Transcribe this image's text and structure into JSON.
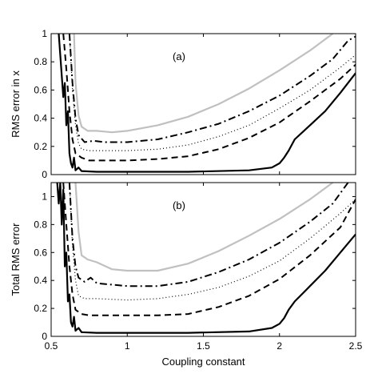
{
  "chart_data": [
    {
      "type": "line",
      "panel_label": "(a)",
      "xlabel": "",
      "ylabel": "RMS error in x",
      "xlim": [
        0.5,
        2.5
      ],
      "ylim": [
        0,
        1
      ],
      "x_ticks": [
        0.5,
        1,
        1.5,
        2,
        2.5
      ],
      "x_tick_labels": [
        "",
        "",
        "",
        "",
        ""
      ],
      "y_ticks": [
        0,
        0.2,
        0.4,
        0.6,
        0.8,
        1
      ],
      "y_tick_labels": [
        "0",
        "0.2",
        "0.4",
        "0.6",
        "0.8",
        "1"
      ],
      "grid": false,
      "series": [
        {
          "style": "solid",
          "color": "#000000",
          "points": [
            [
              0.55,
              1.0
            ],
            [
              0.57,
              0.7
            ],
            [
              0.58,
              0.55
            ],
            [
              0.59,
              0.65
            ],
            [
              0.6,
              0.35
            ],
            [
              0.61,
              0.45
            ],
            [
              0.62,
              0.15
            ],
            [
              0.63,
              0.08
            ],
            [
              0.64,
              0.05
            ],
            [
              0.65,
              0.12
            ],
            [
              0.66,
              0.03
            ],
            [
              0.68,
              0.05
            ],
            [
              0.7,
              0.025
            ],
            [
              0.8,
              0.02
            ],
            [
              1.0,
              0.02
            ],
            [
              1.4,
              0.02
            ],
            [
              1.8,
              0.03
            ],
            [
              1.95,
              0.05
            ],
            [
              2.0,
              0.08
            ],
            [
              2.03,
              0.12
            ],
            [
              2.06,
              0.17
            ],
            [
              2.1,
              0.25
            ],
            [
              2.2,
              0.35
            ],
            [
              2.3,
              0.45
            ],
            [
              2.4,
              0.58
            ],
            [
              2.5,
              0.72
            ]
          ]
        },
        {
          "style": "dashed",
          "color": "#000000",
          "points": [
            [
              0.58,
              1.0
            ],
            [
              0.6,
              0.75
            ],
            [
              0.62,
              0.45
            ],
            [
              0.64,
              0.25
            ],
            [
              0.66,
              0.15
            ],
            [
              0.7,
              0.12
            ],
            [
              0.75,
              0.1
            ],
            [
              1.0,
              0.1
            ],
            [
              1.2,
              0.11
            ],
            [
              1.4,
              0.13
            ],
            [
              1.6,
              0.18
            ],
            [
              1.8,
              0.26
            ],
            [
              2.0,
              0.37
            ],
            [
              2.2,
              0.52
            ],
            [
              2.4,
              0.68
            ],
            [
              2.5,
              0.78
            ]
          ]
        },
        {
          "style": "dotted",
          "color": "#000000",
          "points": [
            [
              0.62,
              1.0
            ],
            [
              0.64,
              0.6
            ],
            [
              0.66,
              0.35
            ],
            [
              0.68,
              0.22
            ],
            [
              0.7,
              0.18
            ],
            [
              0.75,
              0.17
            ],
            [
              1.0,
              0.17
            ],
            [
              1.2,
              0.18
            ],
            [
              1.4,
              0.21
            ],
            [
              1.6,
              0.27
            ],
            [
              1.8,
              0.35
            ],
            [
              2.0,
              0.47
            ],
            [
              2.2,
              0.6
            ],
            [
              2.4,
              0.76
            ],
            [
              2.5,
              0.85
            ]
          ]
        },
        {
          "style": "dashdot",
          "color": "#000000",
          "points": [
            [
              0.62,
              1.0
            ],
            [
              0.64,
              0.65
            ],
            [
              0.66,
              0.4
            ],
            [
              0.68,
              0.28
            ],
            [
              0.72,
              0.23
            ],
            [
              0.78,
              0.24
            ],
            [
              0.85,
              0.23
            ],
            [
              1.0,
              0.23
            ],
            [
              1.2,
              0.25
            ],
            [
              1.4,
              0.3
            ],
            [
              1.6,
              0.36
            ],
            [
              1.8,
              0.45
            ],
            [
              2.0,
              0.56
            ],
            [
              2.2,
              0.7
            ],
            [
              2.35,
              0.82
            ],
            [
              2.45,
              0.95
            ],
            [
              2.5,
              0.98
            ]
          ]
        },
        {
          "style": "solid",
          "color": "#c0c0c0",
          "points": [
            [
              0.65,
              1.0
            ],
            [
              0.66,
              0.65
            ],
            [
              0.68,
              0.42
            ],
            [
              0.7,
              0.34
            ],
            [
              0.74,
              0.31
            ],
            [
              0.8,
              0.31
            ],
            [
              0.9,
              0.3
            ],
            [
              1.0,
              0.31
            ],
            [
              1.2,
              0.35
            ],
            [
              1.4,
              0.41
            ],
            [
              1.6,
              0.5
            ],
            [
              1.8,
              0.61
            ],
            [
              2.0,
              0.74
            ],
            [
              2.2,
              0.88
            ],
            [
              2.35,
              1.0
            ]
          ]
        }
      ]
    },
    {
      "type": "line",
      "panel_label": "(b)",
      "xlabel": "Coupling constant",
      "ylabel": "Total RMS error",
      "xlim": [
        0.5,
        2.5
      ],
      "ylim": [
        0,
        1.1
      ],
      "x_ticks": [
        0.5,
        1,
        1.5,
        2,
        2.5
      ],
      "x_tick_labels": [
        "0.5",
        "1",
        "1.5",
        "2",
        "2.5"
      ],
      "y_ticks": [
        0,
        0.2,
        0.4,
        0.6,
        0.8,
        1
      ],
      "y_tick_labels": [
        "0",
        "0.2",
        "0.4",
        "0.6",
        "0.8",
        "1"
      ],
      "grid": false,
      "series": [
        {
          "style": "solid",
          "color": "#000000",
          "points": [
            [
              0.54,
              1.1
            ],
            [
              0.55,
              0.95
            ],
            [
              0.56,
              1.1
            ],
            [
              0.57,
              0.8
            ],
            [
              0.58,
              1.05
            ],
            [
              0.59,
              0.5
            ],
            [
              0.6,
              0.6
            ],
            [
              0.61,
              0.25
            ],
            [
              0.62,
              0.3
            ],
            [
              0.63,
              0.1
            ],
            [
              0.64,
              0.07
            ],
            [
              0.65,
              0.14
            ],
            [
              0.66,
              0.04
            ],
            [
              0.68,
              0.06
            ],
            [
              0.7,
              0.03
            ],
            [
              0.8,
              0.025
            ],
            [
              1.0,
              0.025
            ],
            [
              1.4,
              0.025
            ],
            [
              1.8,
              0.035
            ],
            [
              1.95,
              0.06
            ],
            [
              2.0,
              0.09
            ],
            [
              2.03,
              0.13
            ],
            [
              2.06,
              0.19
            ],
            [
              2.1,
              0.25
            ],
            [
              2.2,
              0.36
            ],
            [
              2.3,
              0.47
            ],
            [
              2.4,
              0.6
            ],
            [
              2.5,
              0.73
            ]
          ]
        },
        {
          "style": "dashed",
          "color": "#000000",
          "points": [
            [
              0.58,
              1.1
            ],
            [
              0.6,
              0.8
            ],
            [
              0.62,
              0.5
            ],
            [
              0.64,
              0.3
            ],
            [
              0.66,
              0.19
            ],
            [
              0.7,
              0.16
            ],
            [
              0.75,
              0.15
            ],
            [
              1.0,
              0.15
            ],
            [
              1.2,
              0.15
            ],
            [
              1.4,
              0.16
            ],
            [
              1.6,
              0.21
            ],
            [
              1.8,
              0.29
            ],
            [
              2.0,
              0.41
            ],
            [
              2.2,
              0.58
            ],
            [
              2.4,
              0.78
            ],
            [
              2.5,
              0.98
            ]
          ]
        },
        {
          "style": "dotted",
          "color": "#000000",
          "points": [
            [
              0.62,
              1.1
            ],
            [
              0.64,
              0.65
            ],
            [
              0.66,
              0.4
            ],
            [
              0.68,
              0.29
            ],
            [
              0.72,
              0.27
            ],
            [
              0.8,
              0.27
            ],
            [
              1.0,
              0.26
            ],
            [
              1.2,
              0.27
            ],
            [
              1.4,
              0.3
            ],
            [
              1.6,
              0.35
            ],
            [
              1.8,
              0.43
            ],
            [
              2.0,
              0.54
            ],
            [
              2.2,
              0.7
            ],
            [
              2.4,
              0.88
            ],
            [
              2.5,
              0.98
            ]
          ]
        },
        {
          "style": "dashdot",
          "color": "#000000",
          "points": [
            [
              0.62,
              1.1
            ],
            [
              0.64,
              0.7
            ],
            [
              0.66,
              0.5
            ],
            [
              0.68,
              0.42
            ],
            [
              0.72,
              0.39
            ],
            [
              0.76,
              0.42
            ],
            [
              0.8,
              0.38
            ],
            [
              1.0,
              0.36
            ],
            [
              1.2,
              0.36
            ],
            [
              1.4,
              0.39
            ],
            [
              1.6,
              0.46
            ],
            [
              1.8,
              0.55
            ],
            [
              2.0,
              0.67
            ],
            [
              2.2,
              0.82
            ],
            [
              2.35,
              0.95
            ],
            [
              2.45,
              1.1
            ]
          ]
        },
        {
          "style": "solid",
          "color": "#c0c0c0",
          "points": [
            [
              0.66,
              1.1
            ],
            [
              0.68,
              0.75
            ],
            [
              0.7,
              0.58
            ],
            [
              0.74,
              0.55
            ],
            [
              0.8,
              0.53
            ],
            [
              0.9,
              0.48
            ],
            [
              1.0,
              0.47
            ],
            [
              1.2,
              0.47
            ],
            [
              1.4,
              0.52
            ],
            [
              1.6,
              0.61
            ],
            [
              1.8,
              0.72
            ],
            [
              2.0,
              0.84
            ],
            [
              2.2,
              0.98
            ],
            [
              2.35,
              1.1
            ]
          ]
        }
      ]
    }
  ]
}
